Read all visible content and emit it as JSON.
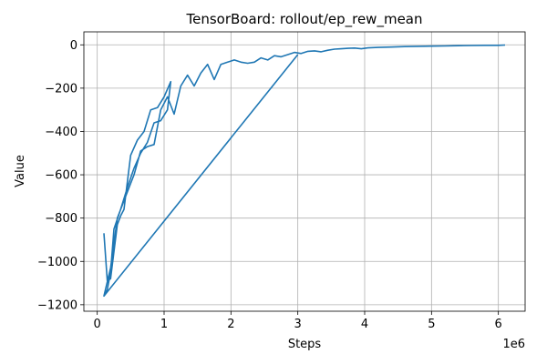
{
  "chart_data": {
    "type": "line",
    "title": "TensorBoard: rollout/ep_rew_mean",
    "xlabel": "Steps",
    "ylabel": "Value",
    "x_offset_text": "1e6",
    "xlim": [
      -0.2,
      6.4
    ],
    "ylim": [
      -1230,
      60
    ],
    "x_ticks": [
      0,
      1,
      2,
      3,
      4,
      5,
      6
    ],
    "x_tick_labels": [
      "0",
      "1",
      "2",
      "3",
      "4",
      "5",
      "6"
    ],
    "y_ticks": [
      -1200,
      -1000,
      -800,
      -600,
      -400,
      -200,
      0
    ],
    "y_tick_labels": [
      "−1200",
      "−1000",
      "−800",
      "−600",
      "−400",
      "−200",
      "0"
    ],
    "grid": true,
    "line_color": "#1f77b4",
    "series": [
      {
        "x": [
          0.1,
          0.15,
          0.2,
          0.3,
          0.35,
          0.4,
          0.5,
          0.6,
          0.7,
          0.8,
          0.9,
          1.0,
          1.1,
          1.05,
          0.95,
          0.85,
          0.75,
          0.65,
          0.55,
          0.45,
          0.35,
          0.25,
          0.2,
          0.15,
          0.1,
          0.2,
          0.3,
          0.4,
          0.5,
          0.55,
          0.65,
          0.75,
          0.85,
          0.95,
          1.05,
          1.15,
          1.25,
          1.35,
          1.45,
          1.55,
          1.65,
          1.75,
          1.85,
          1.95,
          2.05,
          2.15,
          2.25,
          2.35,
          2.45,
          2.55,
          2.65,
          2.75,
          2.85,
          2.95,
          3.05,
          3.15,
          3.25,
          3.35,
          3.45,
          3.55,
          3.65,
          3.75,
          3.85,
          3.95,
          4.05,
          4.2,
          4.4,
          4.6,
          4.8,
          5.0,
          5.2,
          5.4,
          5.6,
          5.8,
          6.0,
          6.1
        ],
        "y": [
          -870,
          -1090,
          -1080,
          -830,
          -790,
          -760,
          -510,
          -440,
          -400,
          -300,
          -290,
          -240,
          -170,
          -300,
          -350,
          -360,
          -450,
          -500,
          -570,
          -660,
          -760,
          -850,
          -1050,
          -1130,
          -1160,
          -1030,
          -800,
          -720,
          -640,
          -600,
          -490,
          -470,
          -460,
          -300,
          -240,
          -320,
          -190,
          -140,
          -190,
          -130,
          -90,
          -160,
          -90,
          -80,
          -70,
          -80,
          -85,
          -80,
          -60,
          -70,
          -50,
          -55,
          -45,
          -35,
          -40,
          -30,
          -28,
          -32,
          -25,
          -20,
          -18,
          -16,
          -15,
          -18,
          -14,
          -12,
          -10,
          -8,
          -7,
          -6,
          -5,
          -4,
          -3,
          -2,
          -2,
          -1
        ]
      }
    ],
    "tail_to_start": {
      "x": [
        0.1,
        3.0
      ],
      "y": [
        -1160,
        -45
      ]
    }
  }
}
